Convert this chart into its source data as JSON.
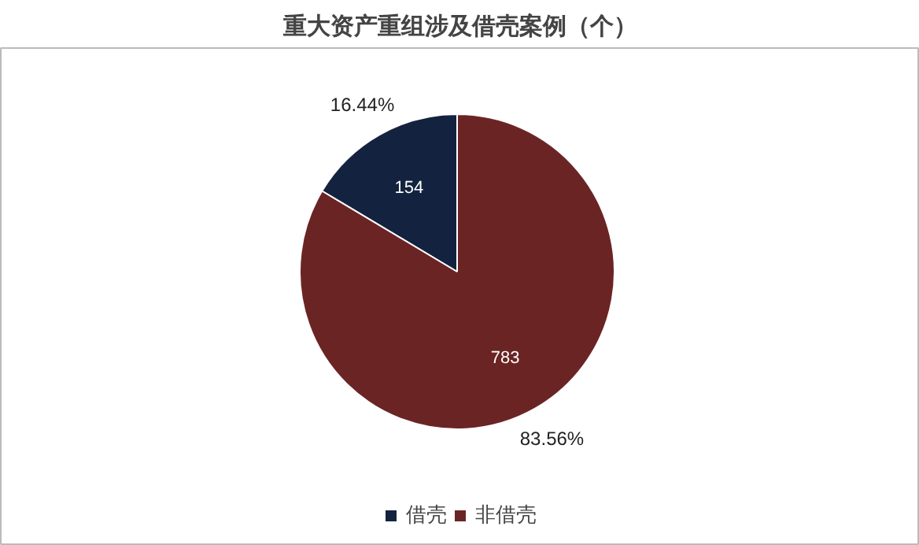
{
  "chart_data": {
    "type": "pie",
    "title": "重大资产重组涉及借壳案例（个）",
    "categories": [
      "借壳",
      "非借壳"
    ],
    "values": [
      154,
      783
    ],
    "colors": [
      "#13233f",
      "#6b2424"
    ],
    "data_labels": true,
    "annotations": [
      "16.44%",
      "83.56%"
    ],
    "legend": "bottom"
  }
}
